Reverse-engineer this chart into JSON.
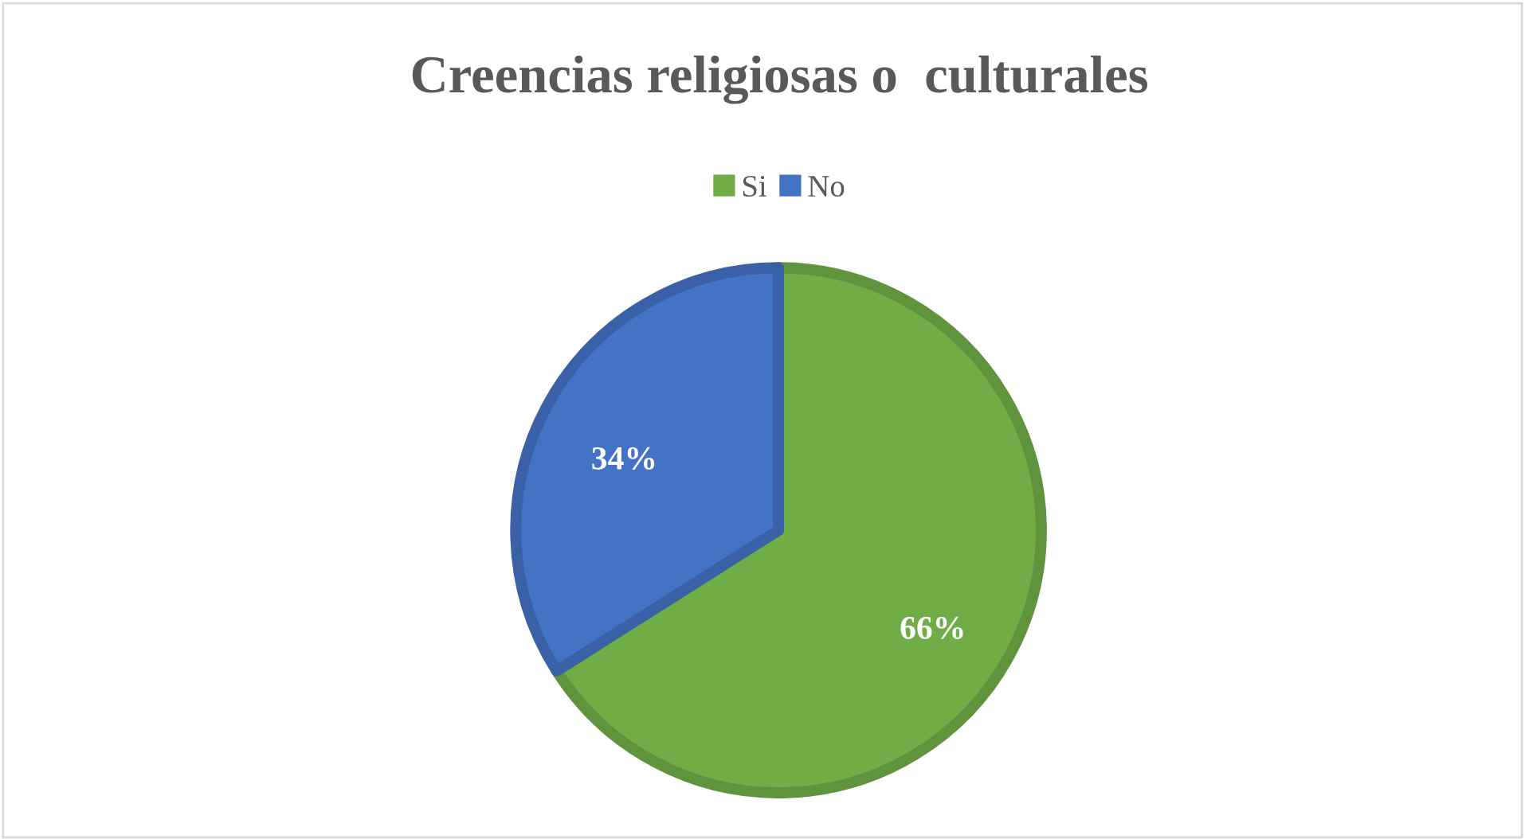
{
  "chart_data": {
    "type": "pie",
    "title": "Creencias religiosas o  culturales",
    "categories": [
      "Si",
      "No"
    ],
    "values": [
      66,
      34
    ],
    "colors": [
      "#70ad47",
      "#4472c4"
    ],
    "value_labels": [
      "66%",
      "34%"
    ],
    "legend": "top"
  }
}
